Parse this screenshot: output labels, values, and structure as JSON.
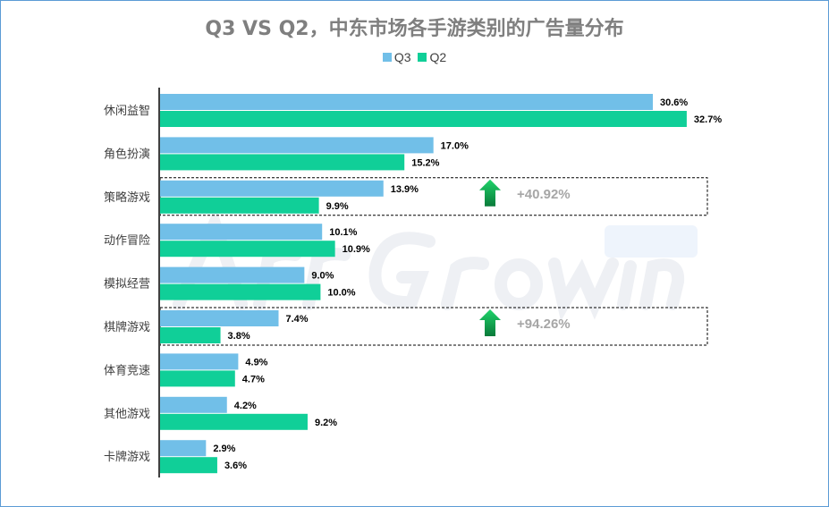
{
  "watermark": {
    "main": "ArrGrowing",
    "badge": "Global"
  },
  "chart_data": {
    "type": "bar",
    "orientation": "horizontal",
    "title": "Q3 VS Q2，中东市场各手游类别的广告量分布",
    "categories": [
      "休闲益智",
      "角色扮演",
      "策略游戏",
      "动作冒险",
      "模拟经营",
      "棋牌游戏",
      "体育竞速",
      "其他游戏",
      "卡牌游戏"
    ],
    "series": [
      {
        "name": "Q3",
        "color": "#71bfe8",
        "values": [
          30.6,
          17.0,
          13.9,
          10.1,
          9.0,
          7.4,
          4.9,
          4.2,
          2.9
        ]
      },
      {
        "name": "Q2",
        "color": "#10cf98",
        "values": [
          32.7,
          15.2,
          9.9,
          10.9,
          10.0,
          3.8,
          4.7,
          9.2,
          3.6
        ]
      }
    ],
    "value_unit": "%",
    "xlim": [
      0,
      40
    ],
    "grid": false,
    "legend_placement": "top",
    "annotations": [
      {
        "category": "策略游戏",
        "text": "+40.92%",
        "icon": "up-arrow-icon",
        "color": "#10b050"
      },
      {
        "category": "棋牌游戏",
        "text": "+94.26%",
        "icon": "up-arrow-icon",
        "color": "#10b050"
      }
    ]
  }
}
